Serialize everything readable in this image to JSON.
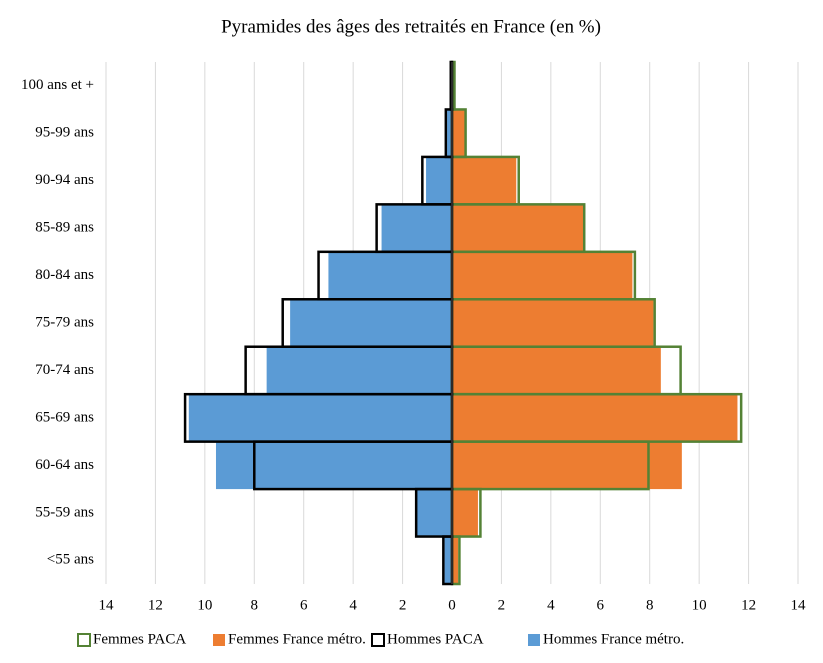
{
  "chart_data": {
    "type": "pyramid",
    "title": "Pyramides des âges des retraités en France (en %)",
    "categories": [
      "100 ans et +",
      "95-99 ans",
      "90-94 ans",
      "85-89 ans",
      "80-84 ans",
      "75-79 ans",
      "70-74 ans",
      "65-69 ans",
      "60-64 ans",
      "55-59 ans",
      "<55 ans"
    ],
    "series": [
      {
        "name": "Femmes PACA",
        "color": "#548235",
        "style": "outline",
        "values": [
          0.1,
          0.55,
          2.7,
          5.35,
          7.4,
          8.2,
          9.25,
          11.7,
          7.95,
          1.15,
          0.3
        ]
      },
      {
        "name": "Femmes France métro.",
        "color": "#ed7d31",
        "style": "fill",
        "values": [
          0.1,
          0.55,
          2.6,
          5.35,
          7.3,
          8.15,
          8.45,
          11.55,
          9.3,
          1.05,
          0.25
        ]
      },
      {
        "name": "Hommes PACA",
        "color": "#000000",
        "style": "outline",
        "values": [
          -0.05,
          -0.25,
          -1.2,
          -3.05,
          -5.4,
          -6.85,
          -8.35,
          -10.8,
          -8.0,
          -1.45,
          -0.35
        ]
      },
      {
        "name": "Hommes France métro.",
        "color": "#5b9bd5",
        "style": "fill",
        "values": [
          -0.05,
          -0.2,
          -1.05,
          -2.85,
          -5.0,
          -6.55,
          -7.5,
          -10.65,
          -9.55,
          -1.45,
          -0.3
        ]
      }
    ],
    "xlim": [
      -14,
      14
    ],
    "xticks": [
      {
        "value": -14,
        "label": "14"
      },
      {
        "value": -12,
        "label": "12"
      },
      {
        "value": -10,
        "label": "10"
      },
      {
        "value": -8,
        "label": "8"
      },
      {
        "value": -6,
        "label": "6"
      },
      {
        "value": -4,
        "label": "4"
      },
      {
        "value": -2,
        "label": "2"
      },
      0,
      2,
      4,
      6,
      8,
      10,
      12,
      14
    ],
    "grid": true,
    "legend": "bottom"
  }
}
